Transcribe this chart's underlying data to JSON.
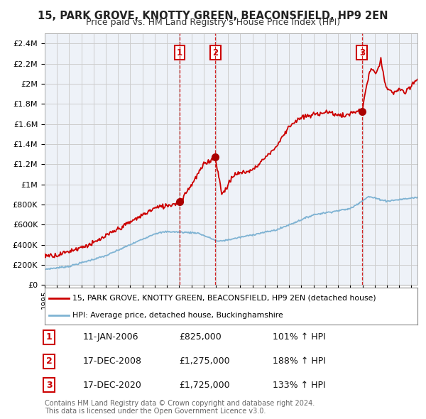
{
  "title": "15, PARK GROVE, KNOTTY GREEN, BEACONSFIELD, HP9 2EN",
  "subtitle": "Price paid vs. HM Land Registry's House Price Index (HPI)",
  "background_color": "#ffffff",
  "plot_background": "#eef2f8",
  "grid_color": "#cccccc",
  "red_line_color": "#cc0000",
  "blue_line_color": "#7fb3d3",
  "sale_marker_color": "#aa0000",
  "dashed_line_color": "#cc0000",
  "sale_box_color": "#cc0000",
  "ylim": [
    0,
    2500000
  ],
  "yticks": [
    0,
    200000,
    400000,
    600000,
    800000,
    1000000,
    1200000,
    1400000,
    1600000,
    1800000,
    2000000,
    2200000,
    2400000
  ],
  "ytick_labels": [
    "£0",
    "£200K",
    "£400K",
    "£600K",
    "£800K",
    "£1M",
    "£1.2M",
    "£1.4M",
    "£1.6M",
    "£1.8M",
    "£2M",
    "£2.2M",
    "£2.4M"
  ],
  "sales": [
    {
      "num": 1,
      "date_label": "11-JAN-2006",
      "price": 825000,
      "price_label": "£825,000",
      "pct_label": "101% ↑ HPI",
      "x_year": 2006.04
    },
    {
      "num": 2,
      "date_label": "17-DEC-2008",
      "price": 1275000,
      "price_label": "£1,275,000",
      "pct_label": "188% ↑ HPI",
      "x_year": 2008.96
    },
    {
      "num": 3,
      "date_label": "17-DEC-2020",
      "price": 1725000,
      "price_label": "£1,725,000",
      "pct_label": "133% ↑ HPI",
      "x_year": 2020.96
    }
  ],
  "legend_line1": "15, PARK GROVE, KNOTTY GREEN, BEACONSFIELD, HP9 2EN (detached house)",
  "legend_line2": "HPI: Average price, detached house, Buckinghamshire",
  "footer1": "Contains HM Land Registry data © Crown copyright and database right 2024.",
  "footer2": "This data is licensed under the Open Government Licence v3.0.",
  "xmin": 1995,
  "xmax": 2025.5
}
